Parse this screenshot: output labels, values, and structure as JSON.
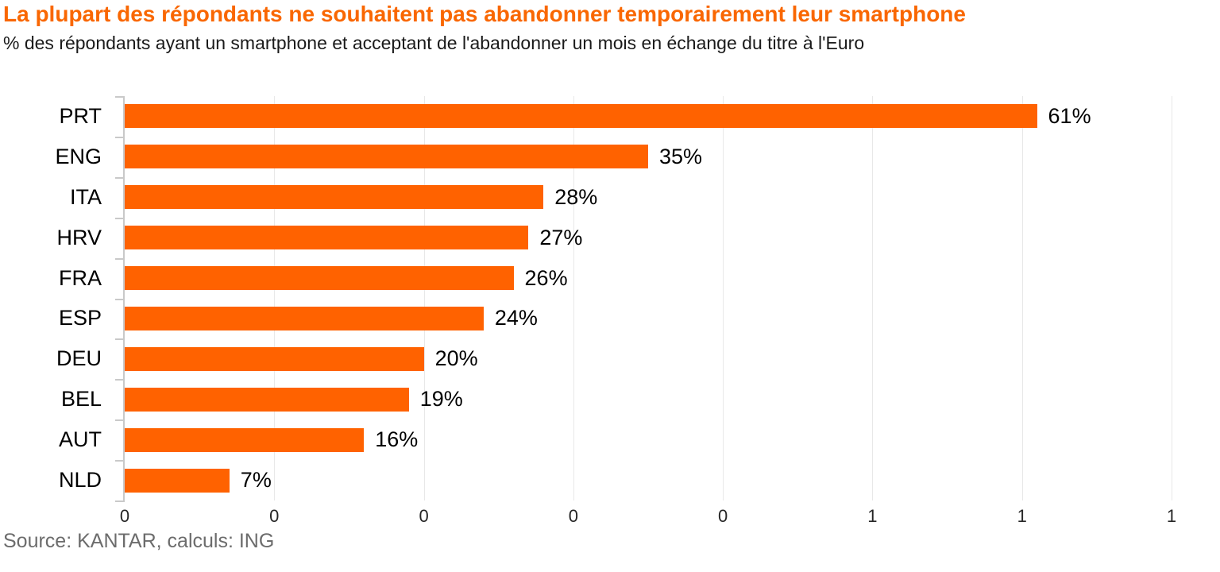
{
  "page": {
    "title": "La plupart des répondants ne souhaitent pas abandonner temporairement leur smartphone",
    "subtitle": "% des répondants ayant un smartphone et acceptant de l'abandonner un mois en échange du titre à l'Euro",
    "source": "Source: KANTAR, calculs: ING"
  },
  "colors": {
    "title_accent": "#f96702",
    "bar": "#ff6200",
    "gridline": "#e8e8e8",
    "axis": "#c9c9c9",
    "label_text": "#000000",
    "tick_text": "#262626",
    "source_text": "#6c6c6c"
  },
  "chart_data": {
    "type": "bar",
    "orientation": "horizontal",
    "title": "La plupart des répondants ne souhaitent pas abandonner temporairement leur smartphone",
    "subtitle": "% des répondants ayant un smartphone et acceptant de l'abandonner un mois en échange du titre à l'Euro",
    "categories": [
      "PRT",
      "ENG",
      "ITA",
      "HRV",
      "FRA",
      "ESP",
      "DEU",
      "BEL",
      "AUT",
      "NLD"
    ],
    "values_percent": [
      61,
      35,
      28,
      27,
      26,
      24,
      20,
      19,
      16,
      7
    ],
    "value_labels": [
      "61%",
      "35%",
      "28%",
      "27%",
      "26%",
      "24%",
      "20%",
      "19%",
      "16%",
      "7%"
    ],
    "xlabel": "",
    "ylabel": "",
    "x_axis": {
      "min": 0,
      "max": 0.7,
      "tick_interval": 0.1,
      "tick_labels": [
        "0",
        "0",
        "0",
        "0",
        "0",
        "1",
        "1",
        "1"
      ]
    },
    "grid": true,
    "legend": false,
    "source": "Source: KANTAR, calculs: ING"
  }
}
